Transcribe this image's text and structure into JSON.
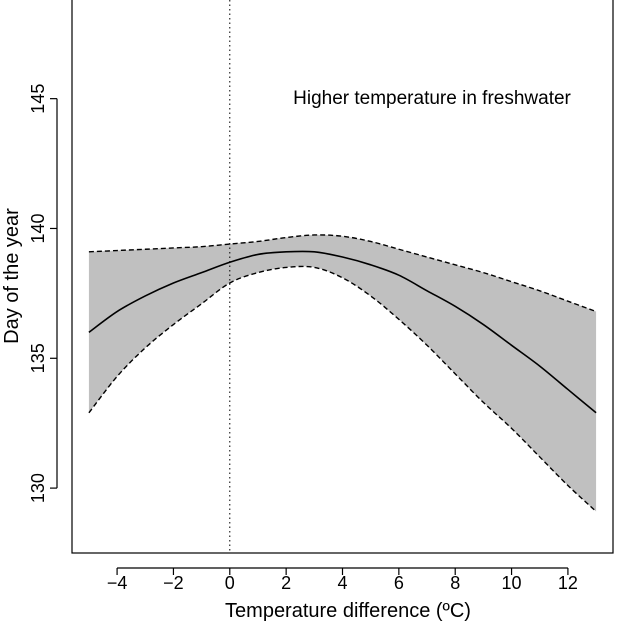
{
  "chart_data": {
    "type": "line",
    "title": "",
    "xlabel": "Temperature difference (ºC)",
    "ylabel": "Day of the year",
    "xlim": [
      -5.6,
      13.6
    ],
    "ylim": [
      127.5,
      148.8
    ],
    "xticks": [
      -4,
      -2,
      0,
      2,
      4,
      6,
      8,
      10,
      12
    ],
    "xtick_labels": [
      "−4",
      "−2",
      "0",
      "2",
      "4",
      "6",
      "8",
      "10",
      "12"
    ],
    "yticks": [
      130,
      135,
      140,
      145
    ],
    "ytick_labels": [
      "130",
      "135",
      "140",
      "145"
    ],
    "reference_line": {
      "x": 0,
      "style": "dotted"
    },
    "annotation": "Higher temperature in freshwater",
    "grid": false,
    "legend": "none",
    "colors": {
      "band": "#c0c0c0",
      "line": "#000000"
    },
    "series": [
      {
        "role": "fit",
        "style": "solid",
        "x": [
          -5,
          -4,
          -3,
          -2,
          -1,
          0,
          1,
          2,
          3,
          4,
          5,
          6,
          7,
          8,
          9,
          10,
          11,
          12,
          13
        ],
        "values": [
          136.0,
          136.8,
          137.4,
          137.9,
          138.3,
          138.7,
          139.0,
          139.1,
          139.1,
          138.9,
          138.6,
          138.2,
          137.6,
          137.0,
          136.3,
          135.5,
          134.7,
          133.8,
          132.9
        ]
      },
      {
        "role": "upper-bound",
        "style": "dashed",
        "x": [
          -5,
          -4,
          -3,
          -2,
          -1,
          0,
          1,
          2,
          3,
          4,
          5,
          6,
          7,
          8,
          9,
          10,
          11,
          12,
          13
        ],
        "values": [
          139.1,
          139.15,
          139.2,
          139.25,
          139.3,
          139.4,
          139.5,
          139.65,
          139.75,
          139.7,
          139.5,
          139.2,
          138.9,
          138.6,
          138.3,
          137.95,
          137.6,
          137.2,
          136.8
        ]
      },
      {
        "role": "lower-bound",
        "style": "dashed",
        "x": [
          -5,
          -4,
          -3,
          -2,
          -1,
          0,
          1,
          2,
          3,
          4,
          5,
          6,
          7,
          8,
          9,
          10,
          11,
          12,
          13
        ],
        "values": [
          132.9,
          134.3,
          135.4,
          136.3,
          137.1,
          137.9,
          138.3,
          138.5,
          138.5,
          138.1,
          137.4,
          136.5,
          135.5,
          134.4,
          133.3,
          132.3,
          131.2,
          130.1,
          129.1
        ]
      }
    ]
  }
}
